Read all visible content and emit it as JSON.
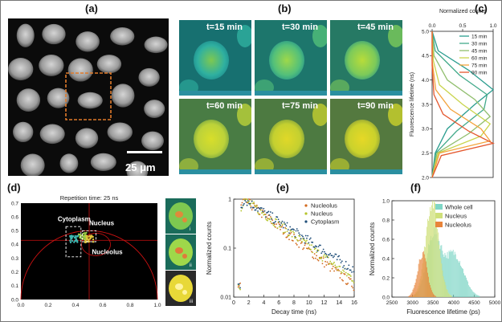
{
  "panel_labels": [
    "(a)",
    "(b)",
    "(c)",
    "(d)",
    "(e)",
    "(f)"
  ],
  "panel_a": {
    "scale_bar_label": "25 μm"
  },
  "panel_b": {
    "time_labels": [
      "t=15 min",
      "t=30 min",
      "t=45 min",
      "t=60 min",
      "t=75 min",
      "t=90 min"
    ]
  },
  "panel_d": {
    "roman_labels": [
      "i",
      "ii",
      "iii"
    ]
  },
  "colors": {
    "bg_black": "#000000",
    "roi_orange": "#e07b2a",
    "axis_red": "#cc1111",
    "nucleus_yellow": "#c8d84a"
  },
  "chart_data": [
    {
      "id": "c",
      "type": "line",
      "title": "",
      "xlabel": "Normalized counts",
      "ylabel": "Fluorescence lifetime (ns)",
      "xlim": [
        0,
        1.0
      ],
      "ylim": [
        2.0,
        5.0
      ],
      "xticks": [
        "0.0",
        "0.5",
        "1.0"
      ],
      "yticks": [
        "2.0",
        "2.5",
        "3.0",
        "3.5",
        "4.0",
        "4.5",
        "5.0"
      ],
      "legend": [
        "15 min",
        "30 min",
        "45 min",
        "60 min",
        "75 min",
        "90 min"
      ],
      "series": [
        {
          "name": "15 min",
          "color": "#2a9d8f",
          "points": [
            [
              0.0,
              2.0
            ],
            [
              0.05,
              2.5
            ],
            [
              0.25,
              3.0
            ],
            [
              0.7,
              3.5
            ],
            [
              1.0,
              3.8
            ],
            [
              0.6,
              4.2
            ],
            [
              0.1,
              4.6
            ],
            [
              0.0,
              5.0
            ]
          ]
        },
        {
          "name": "30 min",
          "color": "#43aa8b",
          "points": [
            [
              0.0,
              2.0
            ],
            [
              0.06,
              2.5
            ],
            [
              0.4,
              2.95
            ],
            [
              0.85,
              3.4
            ],
            [
              0.9,
              3.7
            ],
            [
              0.45,
              4.1
            ],
            [
              0.05,
              4.6
            ],
            [
              0.0,
              5.0
            ]
          ]
        },
        {
          "name": "45 min",
          "color": "#90be6d",
          "points": [
            [
              0.0,
              2.0
            ],
            [
              0.08,
              2.5
            ],
            [
              0.6,
              2.9
            ],
            [
              0.95,
              3.25
            ],
            [
              0.7,
              3.6
            ],
            [
              0.25,
              4.0
            ],
            [
              0.03,
              4.5
            ],
            [
              0.0,
              5.0
            ]
          ]
        },
        {
          "name": "60 min",
          "color": "#c9d44c",
          "points": [
            [
              0.0,
              2.0
            ],
            [
              0.1,
              2.5
            ],
            [
              0.8,
              2.85
            ],
            [
              0.95,
              3.1
            ],
            [
              0.5,
              3.5
            ],
            [
              0.12,
              3.9
            ],
            [
              0.02,
              4.4
            ],
            [
              0.0,
              5.0
            ]
          ]
        },
        {
          "name": "75 min",
          "color": "#f3a33b",
          "points": [
            [
              0.0,
              2.0
            ],
            [
              0.12,
              2.5
            ],
            [
              0.95,
              2.75
            ],
            [
              0.8,
              3.0
            ],
            [
              0.3,
              3.4
            ],
            [
              0.06,
              3.8
            ],
            [
              0.0,
              4.4
            ],
            [
              0.0,
              5.0
            ]
          ]
        },
        {
          "name": "90 min",
          "color": "#e4572e",
          "points": [
            [
              0.0,
              2.0
            ],
            [
              0.15,
              2.45
            ],
            [
              1.0,
              2.7
            ],
            [
              0.6,
              2.95
            ],
            [
              0.18,
              3.3
            ],
            [
              0.03,
              3.7
            ],
            [
              0.0,
              4.3
            ],
            [
              0.0,
              5.0
            ]
          ]
        }
      ]
    },
    {
      "id": "d",
      "type": "scatter",
      "title": "Repetition time: 25 ns",
      "xlabel": "",
      "ylabel": "",
      "xlim": [
        0,
        1.0
      ],
      "ylim": [
        0,
        0.7
      ],
      "xticks": [
        "0.0",
        "0.2",
        "0.4",
        "0.6",
        "0.8",
        "1.0"
      ],
      "yticks": [
        "0.0",
        "0.1",
        "0.2",
        "0.3",
        "0.4",
        "0.5",
        "0.6",
        "0.7"
      ],
      "annotations": [
        "Cytoplasm",
        "Nucleus",
        "Nucleolus"
      ],
      "crosshair": {
        "x": 0.5,
        "y": 0.43
      },
      "clusters": [
        {
          "name": "Cytoplasm",
          "cx": 0.39,
          "cy": 0.44
        },
        {
          "name": "Nucleus",
          "cx": 0.45,
          "cy": 0.46
        },
        {
          "name": "Nucleolus",
          "cx": 0.5,
          "cy": 0.44
        }
      ]
    },
    {
      "id": "e",
      "type": "scatter",
      "title": "",
      "xlabel": "Decay time (ns)",
      "ylabel": "Normalized counts",
      "xlim": [
        0,
        16
      ],
      "ylim": [
        0.01,
        1
      ],
      "yscale": "log",
      "xticks": [
        "0",
        "2",
        "4",
        "6",
        "8",
        "10",
        "12",
        "14",
        "16"
      ],
      "yticks": [
        "0.01",
        "0.1",
        "1"
      ],
      "legend": [
        "Nucleolus",
        "Nucleus",
        "Cytoplasm"
      ],
      "series": [
        {
          "name": "Nucleolus",
          "color": "#d2691e",
          "peak_x": 1.3,
          "tau": 3.6
        },
        {
          "name": "Nucleus",
          "color": "#b5c42a",
          "peak_x": 1.3,
          "tau": 3.9
        },
        {
          "name": "Cytoplasm",
          "color": "#1f4e79",
          "peak_x": 1.3,
          "tau": 4.4
        }
      ]
    },
    {
      "id": "f",
      "type": "bar",
      "title": "",
      "xlabel": "Fluorescence lifetime (ps)",
      "ylabel": "Normalized counts",
      "xlim": [
        2500,
        5000
      ],
      "ylim": [
        0,
        1.0
      ],
      "xticks": [
        "2500",
        "3000",
        "3500",
        "4000",
        "4500",
        "5000"
      ],
      "yticks": [
        "0.0",
        "0.2",
        "0.4",
        "0.6",
        "0.8",
        "1.0"
      ],
      "legend": [
        "Whole cell",
        "Nucleus",
        "Nucleolus"
      ],
      "series": [
        {
          "name": "Whole cell",
          "color": "#7fd6c6",
          "peaks": [
            [
              3500,
              0.63,
              170
            ],
            [
              4000,
              0.45,
              230
            ]
          ]
        },
        {
          "name": "Nucleus",
          "color": "#cfe07a",
          "peaks": [
            [
              3470,
              1.0,
              160
            ]
          ]
        },
        {
          "name": "Nucleolus",
          "color": "#e8843a",
          "peaks": [
            [
              3230,
              0.45,
              120
            ]
          ]
        }
      ]
    }
  ]
}
